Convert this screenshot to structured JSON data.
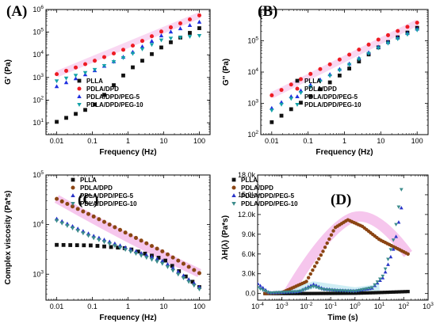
{
  "colors": {
    "PLLA": "#111111",
    "PDLA/DPD": "#ee1c24",
    "PDLA/DPD/PEG-5": "#1f2fe0",
    "PDLA/DPD/PEG-10": "#14a2a8",
    "C_PDLA/DPD": "#8b4513",
    "C_PDLA/DPD/PEG-5": "#2a35c8",
    "C_PDLA/DPD/PEG-10": "#3c8c8c",
    "highlight": "#f4b8e8"
  },
  "chart_data": [
    {
      "id": "A",
      "type": "scatter",
      "panel_label": "(A)",
      "xlabel": "Frequency (Hz)",
      "ylabel": "G' (Pa)",
      "xscale": "log",
      "yscale": "log",
      "xlim": [
        0.005,
        200
      ],
      "ylim": [
        3,
        1000000
      ],
      "xticks": [
        {
          "v": 0.01,
          "label": "0.01"
        },
        {
          "v": 0.1,
          "label": "0.1"
        },
        {
          "v": 1,
          "label": "1"
        },
        {
          "v": 10,
          "label": "10"
        },
        {
          "v": 100,
          "label": "100"
        }
      ],
      "yticks": [
        {
          "v": 10,
          "base": "10",
          "exp": "1"
        },
        {
          "v": 100,
          "base": "10",
          "exp": "2"
        },
        {
          "v": 1000,
          "base": "10",
          "exp": "3"
        },
        {
          "v": 10000,
          "base": "10",
          "exp": "4"
        },
        {
          "v": 100000,
          "base": "10",
          "exp": "5"
        },
        {
          "v": 1000000,
          "base": "10",
          "exp": "6"
        }
      ],
      "legend_position": "lower-right",
      "legend": [
        "PLLA",
        "PDLA/DPD",
        "PDLA/DPD/PEG-5",
        "PDLA/DPD/PEG-10"
      ],
      "series": [
        {
          "name": "PLLA",
          "marker": "square",
          "color_key": "PLLA",
          "x_range": [
            0.01,
            100
          ],
          "count": 16,
          "y_anchors": [
            [
              0.01,
              11
            ],
            [
              0.1,
              50
            ],
            [
              1,
              2000
            ],
            [
              10,
              25000
            ],
            [
              100,
              150000
            ]
          ]
        },
        {
          "name": "PDLA/DPD",
          "marker": "circle",
          "color_key": "PDLA/DPD",
          "x_range": [
            0.01,
            100
          ],
          "count": 16,
          "y_anchors": [
            [
              0.01,
              1400
            ],
            [
              0.1,
              5000
            ],
            [
              1,
              20000
            ],
            [
              10,
              120000
            ],
            [
              100,
              550000
            ]
          ]
        },
        {
          "name": "PDLA/DPD/PEG-5",
          "marker": "triangle-up",
          "color_key": "PDLA/DPD/PEG-5",
          "x_range": [
            0.01,
            100
          ],
          "count": 16,
          "y_anchors": [
            [
              0.01,
              400
            ],
            [
              0.1,
              1800
            ],
            [
              1,
              10000
            ],
            [
              10,
              80000
            ],
            [
              100,
              280000
            ]
          ]
        },
        {
          "name": "PDLA/DPD/PEG-10",
          "marker": "triangle-down",
          "color_key": "PDLA/DPD/PEG-10",
          "x_range": [
            0.01,
            100
          ],
          "count": 16,
          "y_anchors": [
            [
              0.01,
              700
            ],
            [
              0.1,
              2000
            ],
            [
              1,
              9000
            ],
            [
              10,
              50000
            ],
            [
              100,
              70000
            ]
          ]
        }
      ]
    },
    {
      "id": "B",
      "type": "scatter",
      "panel_label": "(B)",
      "xlabel": "Frequency (Hz)",
      "ylabel": "G'' (Pa)",
      "xscale": "log",
      "yscale": "log",
      "xlim": [
        0.005,
        200
      ],
      "ylim": [
        100,
        1000000
      ],
      "xticks": [
        {
          "v": 0.01,
          "label": "0.01"
        },
        {
          "v": 0.1,
          "label": "0.1"
        },
        {
          "v": 1,
          "label": "1"
        },
        {
          "v": 10,
          "label": "10"
        },
        {
          "v": 100,
          "label": "100"
        }
      ],
      "yticks": [
        {
          "v": 100,
          "base": "10",
          "exp": "2"
        },
        {
          "v": 1000,
          "base": "10",
          "exp": "3"
        },
        {
          "v": 10000,
          "base": "10",
          "exp": "4"
        },
        {
          "v": 100000,
          "base": "10",
          "exp": "5"
        }
      ],
      "legend_position": "lower-right",
      "legend": [
        "PLLA",
        "PDLA/DPD",
        "PDLA/DPD/PEG-5",
        "PDLA/DPD/PEG-10"
      ],
      "series": [
        {
          "name": "PLLA",
          "marker": "square",
          "color_key": "PLLA",
          "x_range": [
            0.01,
            100
          ],
          "count": 16,
          "y_anchors": [
            [
              0.01,
              250
            ],
            [
              0.1,
              1500
            ],
            [
              1,
              10000
            ],
            [
              10,
              70000
            ],
            [
              100,
              260000
            ]
          ]
        },
        {
          "name": "PDLA/DPD",
          "marker": "circle",
          "color_key": "PDLA/DPD",
          "x_range": [
            0.01,
            100
          ],
          "count": 16,
          "y_anchors": [
            [
              0.01,
              1800
            ],
            [
              0.1,
              8000
            ],
            [
              1,
              30000
            ],
            [
              10,
              120000
            ],
            [
              100,
              380000
            ]
          ]
        },
        {
          "name": "PDLA/DPD/PEG-5",
          "marker": "triangle-up",
          "color_key": "PDLA/DPD/PEG-5",
          "x_range": [
            0.01,
            100
          ],
          "count": 16,
          "y_anchors": [
            [
              0.01,
              700
            ],
            [
              0.1,
              3500
            ],
            [
              1,
              15000
            ],
            [
              10,
              70000
            ],
            [
              100,
              240000
            ]
          ]
        },
        {
          "name": "PDLA/DPD/PEG-10",
          "marker": "triangle-down",
          "color_key": "PDLA/DPD/PEG-10",
          "x_range": [
            0.01,
            100
          ],
          "count": 16,
          "y_anchors": [
            [
              0.01,
              600
            ],
            [
              0.1,
              3000
            ],
            [
              1,
              14000
            ],
            [
              10,
              65000
            ],
            [
              100,
              220000
            ]
          ]
        }
      ]
    },
    {
      "id": "C",
      "type": "scatter",
      "panel_label": "(C)",
      "xlabel": "Frequency (Hz)",
      "ylabel": "Complex viscosity (Pa*s)",
      "xscale": "log",
      "yscale": "log",
      "xlim": [
        0.005,
        200
      ],
      "ylim": [
        300,
        100000
      ],
      "xticks": [
        {
          "v": 0.01,
          "label": "0.01"
        },
        {
          "v": 0.1,
          "label": "0.1"
        },
        {
          "v": 1,
          "label": "1"
        },
        {
          "v": 10,
          "label": "10"
        },
        {
          "v": 100,
          "label": "100"
        }
      ],
      "yticks": [
        {
          "v": 1000,
          "base": "10",
          "exp": "3"
        },
        {
          "v": 10000,
          "base": "10",
          "exp": "4"
        },
        {
          "v": 100000,
          "base": "10",
          "exp": "5"
        }
      ],
      "legend_position": "top-right",
      "legend": [
        "PLLA",
        "PDLA/DPD",
        "PDLA/DPD/PEG-5",
        "PDLA/DPD/PEG-10"
      ],
      "series": [
        {
          "name": "PLLA",
          "marker": "square",
          "color_key": "PLLA",
          "x_range": [
            0.01,
            100
          ],
          "count": 22,
          "y_anchors": [
            [
              0.01,
              3900
            ],
            [
              0.1,
              3800
            ],
            [
              1,
              3300
            ],
            [
              10,
              2000
            ],
            [
              100,
              550
            ]
          ]
        },
        {
          "name": "PDLA/DPD",
          "marker": "circle",
          "color_key": "C_PDLA/DPD",
          "x_range": [
            0.01,
            100
          ],
          "count": 28,
          "y_anchors": [
            [
              0.01,
              33000
            ],
            [
              0.1,
              15000
            ],
            [
              1,
              6500
            ],
            [
              10,
              2800
            ],
            [
              100,
              1050
            ]
          ]
        },
        {
          "name": "PDLA/DPD/PEG-5",
          "marker": "triangle-up",
          "color_key": "C_PDLA/DPD/PEG-5",
          "x_range": [
            0.01,
            100
          ],
          "count": 28,
          "y_anchors": [
            [
              0.01,
              13000
            ],
            [
              0.1,
              6000
            ],
            [
              1,
              3300
            ],
            [
              10,
              1800
            ],
            [
              100,
              550
            ]
          ]
        },
        {
          "name": "PDLA/DPD/PEG-10",
          "marker": "triangle-down",
          "color_key": "C_PDLA/DPD/PEG-10",
          "x_range": [
            0.01,
            100
          ],
          "count": 28,
          "y_anchors": [
            [
              0.01,
              12000
            ],
            [
              0.1,
              5500
            ],
            [
              1,
              3000
            ],
            [
              10,
              1600
            ],
            [
              100,
              500
            ]
          ]
        }
      ]
    },
    {
      "id": "D",
      "type": "scatter",
      "panel_label": "(D)",
      "xlabel": "Time (s)",
      "ylabel": "λH(λ) (Pa*s)",
      "xscale": "log",
      "yscale": "linear",
      "xlim": [
        0.0001,
        1000
      ],
      "ylim": [
        -1000,
        18000
      ],
      "xticks": [
        {
          "v": 0.0001,
          "base": "10",
          "exp": "-4"
        },
        {
          "v": 0.001,
          "base": "10",
          "exp": "-3"
        },
        {
          "v": 0.01,
          "base": "10",
          "exp": "-2"
        },
        {
          "v": 0.1,
          "base": "10",
          "exp": "-1"
        },
        {
          "v": 1,
          "base": "10",
          "exp": "0"
        },
        {
          "v": 10,
          "base": "10",
          "exp": "1"
        },
        {
          "v": 100,
          "base": "10",
          "exp": "2"
        },
        {
          "v": 1000,
          "base": "10",
          "exp": "3"
        }
      ],
      "yticks": [
        {
          "v": 0,
          "label": "0.0"
        },
        {
          "v": 3000,
          "label": "3.0k"
        },
        {
          "v": 6000,
          "label": "6.0k"
        },
        {
          "v": 9000,
          "label": "9.0k"
        },
        {
          "v": 12000,
          "label": "12.0k"
        },
        {
          "v": 15000,
          "label": "15.0k"
        },
        {
          "v": 18000,
          "label": "18.0k"
        }
      ],
      "legend_position": "top-left",
      "legend": [
        "PLLA",
        "PDLA/DPD",
        "PDLA/DPD/PEG-5",
        "PDLA/DPD/PEG-10"
      ],
      "series": [
        {
          "name": "PLLA",
          "marker": "square",
          "color_key": "PLLA",
          "x_range": [
            0.0002,
            150
          ],
          "count": 50,
          "y_anchors": [
            [
              0.0002,
              0
            ],
            [
              0.01,
              0
            ],
            [
              1,
              40
            ],
            [
              10,
              150
            ],
            [
              150,
              300
            ]
          ]
        },
        {
          "name": "PDLA/DPD",
          "marker": "circle",
          "color_key": "C_PDLA/DPD",
          "x_range": [
            0.0002,
            150
          ],
          "count": 70,
          "y_anchors": [
            [
              0.0002,
              0
            ],
            [
              0.001,
              150
            ],
            [
              0.01,
              1800
            ],
            [
              0.05,
              6500
            ],
            [
              0.15,
              10000
            ],
            [
              0.5,
              11200
            ],
            [
              2,
              10200
            ],
            [
              10,
              8200
            ],
            [
              150,
              6000
            ]
          ]
        },
        {
          "name": "PDLA/DPD/PEG-5",
          "marker": "triangle-up",
          "color_key": "C_PDLA/DPD/PEG-5",
          "x_range": [
            0.0001,
            80
          ],
          "count": 55,
          "y_anchors": [
            [
              0.0001,
              1500
            ],
            [
              0.0003,
              100
            ],
            [
              0.005,
              300
            ],
            [
              0.02,
              1400
            ],
            [
              0.05,
              700
            ],
            [
              0.2,
              500
            ],
            [
              1,
              400
            ],
            [
              5,
              800
            ],
            [
              15,
              2500
            ],
            [
              40,
              7000
            ],
            [
              80,
              13000
            ]
          ]
        },
        {
          "name": "PDLA/DPD/PEG-10",
          "marker": "triangle-down",
          "color_key": "C_PDLA/DPD/PEG-10",
          "x_range": [
            0.0001,
            80
          ],
          "count": 55,
          "y_anchors": [
            [
              0.0001,
              900
            ],
            [
              0.0003,
              100
            ],
            [
              0.005,
              300
            ],
            [
              0.02,
              1100
            ],
            [
              0.05,
              600
            ],
            [
              0.2,
              450
            ],
            [
              1,
              350
            ],
            [
              5,
              900
            ],
            [
              15,
              2800
            ],
            [
              40,
              8500
            ],
            [
              80,
              15800
            ]
          ]
        }
      ]
    }
  ]
}
